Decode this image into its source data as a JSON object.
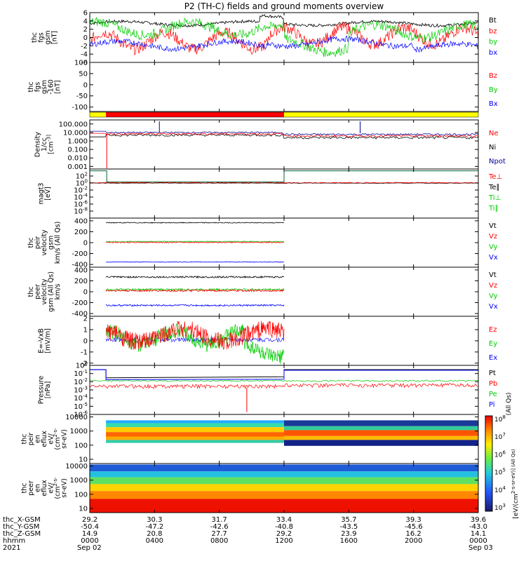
{
  "chart_data": {
    "type": "line",
    "title": "P2 (TH-C) fields and ground moments overview",
    "year": "2021",
    "panels": [
      {
        "id": "fgs",
        "ylabel": [
          "thc",
          "fgs",
          "gsm",
          "[nT]"
        ],
        "ylim": [
          -6,
          6
        ],
        "ticks": [
          "6",
          "4",
          "2",
          "0",
          "-2",
          "-4",
          "-6"
        ],
        "tick_values": [
          6,
          4,
          2,
          0,
          -2,
          -4,
          -6
        ],
        "legend": [
          {
            "label": "Bt",
            "color": "#000000"
          },
          {
            "label": "bz",
            "color": "#ff0000"
          },
          {
            "label": "by",
            "color": "#00cc00"
          },
          {
            "label": "bx",
            "color": "#0000ff"
          }
        ]
      },
      {
        "id": "fgs-flat",
        "ylabel": [
          "thc",
          "fgs",
          "gsm",
          "-160",
          "[nT]"
        ],
        "ylim": [
          -120,
          100
        ],
        "ticks": [
          "100",
          "50",
          "0",
          "-50",
          "-100"
        ],
        "tick_values": [
          100,
          50,
          0,
          -50,
          -100
        ],
        "legend": [
          {
            "label": "Bz",
            "color": "#ff0000"
          },
          {
            "label": "By",
            "color": "#00cc00"
          },
          {
            "label": "Bx",
            "color": "#0000ff"
          }
        ]
      },
      {
        "id": "density",
        "ylabel": [
          "Density",
          "1/cc",
          "[cm^-3]"
        ],
        "ylim": [
          0.0005,
          300
        ],
        "scale": "log",
        "ticks": [
          "100.000",
          "10.000",
          "1.000",
          "0.100",
          "0.010",
          "0.001"
        ],
        "tick_values": [
          100,
          10,
          1,
          0.1,
          0.01,
          0.001
        ],
        "legend": [
          {
            "label": "Ne",
            "color": "#ff0000"
          },
          {
            "label": "Ni",
            "color": "#000000"
          },
          {
            "label": "Npot",
            "color": "#000099"
          }
        ]
      },
      {
        "id": "temperature",
        "ylabel": [
          "magt3",
          "[eV]"
        ],
        "ylim": [
          1e-10,
          10000
        ],
        "scale": "log",
        "ticks": [
          "10^2",
          "10^0",
          "10^-2",
          "10^-4",
          "10^-6",
          "10^-8"
        ],
        "tick_values": [
          100,
          1,
          0.01,
          0.0001,
          1e-06,
          1e-08
        ],
        "legend": [
          {
            "label": "Te⊥",
            "color": "#ff0000"
          },
          {
            "label": "Te∥",
            "color": "#000000"
          },
          {
            "label": "Ti⊥",
            "color": "#00cc00"
          },
          {
            "label": "Ti∥",
            "color": "#00cc00"
          }
        ]
      },
      {
        "id": "peir-velocity",
        "ylabel": [
          "thc",
          "peir",
          "velocity",
          "gsm",
          "km/s (All Qs)"
        ],
        "ylim": [
          -450,
          450
        ],
        "ticks": [
          "400",
          "200",
          "0",
          "-200",
          "-400"
        ],
        "tick_values": [
          400,
          200,
          0,
          -200,
          -400
        ],
        "legend": [
          {
            "label": "Vt",
            "color": "#000000"
          },
          {
            "label": "Vz",
            "color": "#ff0000"
          },
          {
            "label": "Vy",
            "color": "#00cc00"
          },
          {
            "label": "Vx",
            "color": "#0000ff"
          }
        ]
      },
      {
        "id": "peer-velocity",
        "ylabel": [
          "thc",
          "peer",
          "velocity",
          "gsm (All Qs)",
          "km/s"
        ],
        "ylim": [
          -450,
          450
        ],
        "ticks": [
          "400",
          "200",
          "0",
          "-200",
          "-400"
        ],
        "tick_values": [
          400,
          200,
          0,
          -200,
          -400
        ],
        "legend": [
          {
            "label": "Vt",
            "color": "#000000"
          },
          {
            "label": "Vz",
            "color": "#ff0000"
          },
          {
            "label": "Vy",
            "color": "#00cc00"
          },
          {
            "label": "Vx",
            "color": "#0000ff"
          }
        ]
      },
      {
        "id": "efield",
        "ylabel": [
          "E=-VxB",
          "[mV/m]"
        ],
        "ylim": [
          -2.2,
          2.2
        ],
        "ticks": [
          "2",
          "1",
          "0",
          "-1",
          "-2"
        ],
        "tick_values": [
          2,
          1,
          0,
          -1,
          -2
        ],
        "legend": [
          {
            "label": "Ez",
            "color": "#ff0000"
          },
          {
            "label": "Ey",
            "color": "#00cc00"
          },
          {
            "label": "Ex",
            "color": "#0000ff"
          }
        ]
      },
      {
        "id": "pressure",
        "ylabel": [
          "Pressure",
          "[nPa]"
        ],
        "ylim": [
          1e-06,
          1
        ],
        "scale": "log",
        "ticks": [
          "10^0",
          "10^-1",
          "10^-2",
          "10^-3",
          "10^-4",
          "10^-5",
          "10^-6"
        ],
        "tick_values": [
          1,
          0.1,
          0.01,
          0.001,
          0.0001,
          1e-05,
          1e-06
        ],
        "legend": [
          {
            "label": "Pt",
            "color": "#000000"
          },
          {
            "label": "Pb",
            "color": "#ff0000"
          },
          {
            "label": "Pe",
            "color": "#00cc00"
          },
          {
            "label": "Pi",
            "color": "#0000ff"
          }
        ],
        "side_label": "(All Qs)"
      },
      {
        "id": "peir-eflux",
        "ylabel": [
          "thc",
          "peir",
          "en",
          "eflux",
          "eV/",
          "(cm^2-s-",
          "sr-eV)"
        ],
        "ylim": [
          5,
          15000
        ],
        "scale": "log",
        "ticks": [
          "10000",
          "1000",
          "100",
          "10"
        ],
        "tick_values": [
          10000,
          1000,
          100,
          10
        ]
      },
      {
        "id": "peer-eflux",
        "ylabel": [
          "thc",
          "peer",
          "en",
          "eflux",
          "eV/",
          "(cm^2-s-",
          "sr-eV)"
        ],
        "ylim": [
          5,
          15000
        ],
        "scale": "log",
        "ticks": [
          "10000",
          "1000",
          "100",
          "10"
        ],
        "tick_values": [
          10000,
          1000,
          100,
          10
        ]
      }
    ],
    "colorbar": {
      "label": "[eV/(cm^2-s-sr-eV)] (All Qs)",
      "ticks": [
        "10^8",
        "10^7",
        "10^6",
        "10^5",
        "10^4",
        "10^3"
      ],
      "scale": "log"
    },
    "status_bar": {
      "segments": [
        {
          "from_hr": 0.0,
          "to_hr": 1.0,
          "color": "#ffff00"
        },
        {
          "from_hr": 1.0,
          "to_hr": 12.0,
          "color": "#ff0000"
        },
        {
          "from_hr": 12.0,
          "to_hr": 24.0,
          "color": "#ffff00"
        }
      ]
    },
    "xaxis": {
      "range_hr": [
        0,
        24
      ],
      "tick_hours": [
        0,
        4,
        8,
        12,
        16,
        20,
        24
      ],
      "rows": [
        {
          "label": "thc_X-GSM",
          "values": [
            "29.2",
            "30.3",
            "31.7",
            "33.4",
            "35.7",
            "39.3",
            "39.6"
          ]
        },
        {
          "label": "thc_Y-GSM",
          "values": [
            "-50.4",
            "-47.2",
            "-42.6",
            "-40.8",
            "-43.5",
            "-45.6",
            "-43.0"
          ]
        },
        {
          "label": "thc_Z-GSM",
          "values": [
            "14.9",
            "20.8",
            "27.7",
            "29.2",
            "23.9",
            "16.2",
            "14.1"
          ]
        },
        {
          "label": "hhmm",
          "values": [
            "0000",
            "0400",
            "0800",
            "1200",
            "1600",
            "2000",
            "0000"
          ]
        }
      ],
      "dates": [
        "Sep 02",
        "Sep 03"
      ]
    }
  }
}
